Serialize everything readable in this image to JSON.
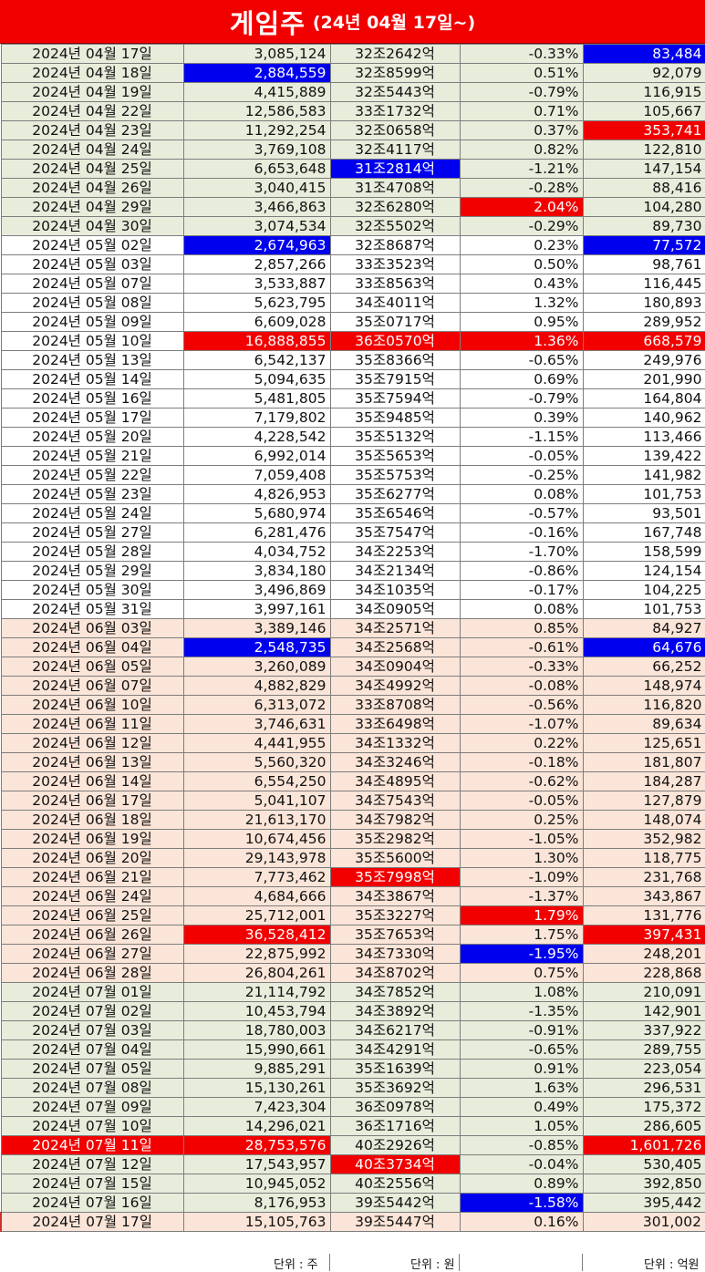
{
  "title": {
    "main": "게임주",
    "sub": "(24년 04월 17일~)"
  },
  "units": {
    "volume": "단위 : 주",
    "cap": "단위 : 원",
    "amount": "단위 : 억원"
  },
  "colors": {
    "red": "#f20000",
    "blue": "#0000ee",
    "bg_green": "#e8ecdb",
    "bg_pink": "#fbe5d8"
  },
  "rows": [
    {
      "date": "2024년 04월 17일",
      "vol": "3,085,124",
      "cap": "32조2642억",
      "chg": "-0.33%",
      "amt": "83,484",
      "bg": "g",
      "vs": "",
      "cs": "",
      "as": "blue-bg"
    },
    {
      "date": "2024년 04월 18일",
      "vol": "2,884,559",
      "cap": "32조8599억",
      "chg": "0.51%",
      "amt": "92,079",
      "bg": "g",
      "vs": "blue-bg",
      "cs": "",
      "as": ""
    },
    {
      "date": "2024년 04월 19일",
      "vol": "4,415,889",
      "cap": "32조5443억",
      "chg": "-0.79%",
      "amt": "116,915",
      "bg": "g",
      "vs": "",
      "cs": "",
      "as": ""
    },
    {
      "date": "2024년 04월 22일",
      "vol": "12,586,583",
      "cap": "33조1732억",
      "chg": "0.71%",
      "amt": "105,667",
      "bg": "g",
      "vs": "",
      "cs": "",
      "as": ""
    },
    {
      "date": "2024년 04월 23일",
      "vol": "11,292,254",
      "cap": "32조0658억",
      "chg": "0.37%",
      "amt": "353,741",
      "bg": "g",
      "vs": "",
      "cs": "",
      "as": "red-bg"
    },
    {
      "date": "2024년 04월 24일",
      "vol": "3,769,108",
      "cap": "32조4117억",
      "chg": "0.82%",
      "amt": "122,810",
      "bg": "g",
      "vs": "",
      "cs": "",
      "as": ""
    },
    {
      "date": "2024년 04월 25일",
      "vol": "6,653,648",
      "cap": "31조2814억",
      "chg": "-1.21%",
      "amt": "147,154",
      "bg": "g",
      "vs": "",
      "cs": "blue-bg",
      "as": ""
    },
    {
      "date": "2024년 04월 26일",
      "vol": "3,040,415",
      "cap": "31조4708억",
      "chg": "-0.28%",
      "amt": "88,416",
      "bg": "g",
      "vs": "",
      "cs": "",
      "as": "t-blue"
    },
    {
      "date": "2024년 04월 29일",
      "vol": "3,466,863",
      "cap": "32조6280억",
      "chg": "2.04%",
      "amt": "104,280",
      "bg": "g",
      "vs": "",
      "cs": "",
      "as": "",
      "xs": "red-bg"
    },
    {
      "date": "2024년 04월 30일",
      "vol": "3,074,534",
      "cap": "32조5502억",
      "chg": "-0.29%",
      "amt": "89,730",
      "bg": "g",
      "vs": "",
      "cs": "",
      "as": ""
    },
    {
      "date": "2024년 05월 02일",
      "vol": "2,674,963",
      "cap": "32조8687억",
      "chg": "0.23%",
      "amt": "77,572",
      "bg": "w",
      "vs": "blue-bg",
      "cs": "",
      "as": "blue-bg"
    },
    {
      "date": "2024년 05월 03일",
      "vol": "2,857,266",
      "cap": "33조3523억",
      "chg": "0.50%",
      "amt": "98,761",
      "bg": "w",
      "vs": "",
      "cs": "",
      "as": ""
    },
    {
      "date": "2024년 05월 07일",
      "vol": "3,533,887",
      "cap": "33조8563억",
      "chg": "0.43%",
      "amt": "116,445",
      "bg": "w",
      "vs": "",
      "cs": "",
      "as": ""
    },
    {
      "date": "2024년 05월 08일",
      "vol": "5,623,795",
      "cap": "34조4011억",
      "chg": "1.32%",
      "amt": "180,893",
      "bg": "w",
      "vs": "",
      "cs": "",
      "as": ""
    },
    {
      "date": "2024년 05월 09일",
      "vol": "6,609,028",
      "cap": "35조0717억",
      "chg": "0.95%",
      "amt": "289,952",
      "bg": "w",
      "vs": "t-red",
      "cs": "t-red",
      "as": "t-red"
    },
    {
      "date": "2024년 05월 10일",
      "vol": "16,888,855",
      "cap": "36조0570억",
      "chg": "1.36%",
      "amt": "668,579",
      "bg": "w",
      "vs": "red-bg",
      "cs": "red-bg",
      "as": "red-bg",
      "xs": "red-bg"
    },
    {
      "date": "2024년 05월 13일",
      "vol": "6,542,137",
      "cap": "35조8366억",
      "chg": "-0.65%",
      "amt": "249,976",
      "bg": "w",
      "vs": "",
      "cs": "",
      "as": ""
    },
    {
      "date": "2024년 05월 14일",
      "vol": "5,094,635",
      "cap": "35조7915억",
      "chg": "0.69%",
      "amt": "201,990",
      "bg": "w",
      "vs": "",
      "cs": "",
      "as": ""
    },
    {
      "date": "2024년 05월 16일",
      "vol": "5,481,805",
      "cap": "35조7594억",
      "chg": "-0.79%",
      "amt": "164,804",
      "bg": "w",
      "vs": "",
      "cs": "",
      "as": ""
    },
    {
      "date": "2024년 05월 17일",
      "vol": "7,179,802",
      "cap": "35조9485억",
      "chg": "0.39%",
      "amt": "140,962",
      "bg": "w",
      "vs": "",
      "cs": "",
      "as": ""
    },
    {
      "date": "2024년 05월 20일",
      "vol": "4,228,542",
      "cap": "35조5132억",
      "chg": "-1.15%",
      "amt": "113,466",
      "bg": "w",
      "vs": "",
      "cs": "",
      "as": ""
    },
    {
      "date": "2024년 05월 21일",
      "vol": "6,992,014",
      "cap": "35조5653억",
      "chg": "-0.05%",
      "amt": "139,422",
      "bg": "w",
      "vs": "",
      "cs": "",
      "as": ""
    },
    {
      "date": "2024년 05월 22일",
      "vol": "7,059,408",
      "cap": "35조5753억",
      "chg": "-0.25%",
      "amt": "141,982",
      "bg": "w",
      "vs": "",
      "cs": "",
      "as": ""
    },
    {
      "date": "2024년 05월 23일",
      "vol": "4,826,953",
      "cap": "35조6277억",
      "chg": "0.08%",
      "amt": "101,753",
      "bg": "w",
      "vs": "",
      "cs": "",
      "as": ""
    },
    {
      "date": "2024년 05월 24일",
      "vol": "5,680,974",
      "cap": "35조6546억",
      "chg": "-0.57%",
      "amt": "93,501",
      "bg": "w",
      "vs": "",
      "cs": "",
      "as": ""
    },
    {
      "date": "2024년 05월 27일",
      "vol": "6,281,476",
      "cap": "35조7547억",
      "chg": "-0.16%",
      "amt": "167,748",
      "bg": "w",
      "vs": "",
      "cs": "",
      "as": ""
    },
    {
      "date": "2024년 05월 28일",
      "vol": "4,034,752",
      "cap": "34조2253억",
      "chg": "-1.70%",
      "amt": "158,599",
      "bg": "w",
      "vs": "",
      "cs": "",
      "as": ""
    },
    {
      "date": "2024년 05월 29일",
      "vol": "3,834,180",
      "cap": "34조2134억",
      "chg": "-0.86%",
      "amt": "124,154",
      "bg": "w",
      "vs": "",
      "cs": "",
      "as": ""
    },
    {
      "date": "2024년 05월 30일",
      "vol": "3,496,869",
      "cap": "34조1035억",
      "chg": "-0.17%",
      "amt": "104,225",
      "bg": "w",
      "vs": "",
      "cs": "",
      "as": ""
    },
    {
      "date": "2024년 05월 31일",
      "vol": "3,997,161",
      "cap": "34조0905억",
      "chg": "0.08%",
      "amt": "101,753",
      "bg": "w",
      "vs": "",
      "cs": "",
      "as": ""
    },
    {
      "date": "2024년 06월 03일",
      "vol": "3,389,146",
      "cap": "34조2571억",
      "chg": "0.85%",
      "amt": "84,927",
      "bg": "p",
      "vs": "",
      "cs": "",
      "as": ""
    },
    {
      "date": "2024년 06월 04일",
      "vol": "2,548,735",
      "cap": "34조2568억",
      "chg": "-0.61%",
      "amt": "64,676",
      "bg": "p",
      "vs": "blue-bg",
      "cs": "",
      "as": "blue-bg"
    },
    {
      "date": "2024년 06월 05일",
      "vol": "3,260,089",
      "cap": "34조0904억",
      "chg": "-0.33%",
      "amt": "66,252",
      "bg": "p",
      "vs": "",
      "cs": "",
      "as": ""
    },
    {
      "date": "2024년 06월 07일",
      "vol": "4,882,829",
      "cap": "34조4992억",
      "chg": "-0.08%",
      "amt": "148,974",
      "bg": "p",
      "vs": "",
      "cs": "",
      "as": ""
    },
    {
      "date": "2024년 06월 10일",
      "vol": "6,313,072",
      "cap": "33조8708억",
      "chg": "-0.56%",
      "amt": "116,820",
      "bg": "p",
      "vs": "",
      "cs": "",
      "as": ""
    },
    {
      "date": "2024년 06월 11일",
      "vol": "3,746,631",
      "cap": "33조6498억",
      "chg": "-1.07%",
      "amt": "89,634",
      "bg": "p",
      "vs": "",
      "cs": "t-blue",
      "as": ""
    },
    {
      "date": "2024년 06월 12일",
      "vol": "4,441,955",
      "cap": "34조1332억",
      "chg": "0.22%",
      "amt": "125,651",
      "bg": "p",
      "vs": "",
      "cs": "",
      "as": ""
    },
    {
      "date": "2024년 06월 13일",
      "vol": "5,560,320",
      "cap": "34조3246억",
      "chg": "-0.18%",
      "amt": "181,807",
      "bg": "p",
      "vs": "",
      "cs": "",
      "as": ""
    },
    {
      "date": "2024년 06월 14일",
      "vol": "6,554,250",
      "cap": "34조4895억",
      "chg": "-0.62%",
      "amt": "184,287",
      "bg": "p",
      "vs": "",
      "cs": "",
      "as": ""
    },
    {
      "date": "2024년 06월 17일",
      "vol": "5,041,107",
      "cap": "34조7543억",
      "chg": "-0.05%",
      "amt": "127,879",
      "bg": "p",
      "vs": "",
      "cs": "",
      "as": ""
    },
    {
      "date": "2024년 06월 18일",
      "vol": "21,613,170",
      "cap": "34조7982억",
      "chg": "0.25%",
      "amt": "148,074",
      "bg": "p",
      "vs": "",
      "cs": "",
      "as": ""
    },
    {
      "date": "2024년 06월 19일",
      "vol": "10,674,456",
      "cap": "35조2982억",
      "chg": "-1.05%",
      "amt": "352,982",
      "bg": "p",
      "vs": "",
      "cs": "",
      "as": "t-red"
    },
    {
      "date": "2024년 06월 20일",
      "vol": "29,143,978",
      "cap": "35조5600억",
      "chg": "1.30%",
      "amt": "118,775",
      "bg": "p",
      "vs": "t-red",
      "cs": "t-red",
      "as": ""
    },
    {
      "date": "2024년 06월 21일",
      "vol": "7,773,462",
      "cap": "35조7998억",
      "chg": "-1.09%",
      "amt": "231,768",
      "bg": "p",
      "vs": "",
      "cs": "red-bg",
      "as": ""
    },
    {
      "date": "2024년 06월 24일",
      "vol": "4,684,666",
      "cap": "34조3867억",
      "chg": "-1.37%",
      "amt": "343,867",
      "bg": "p",
      "vs": "",
      "cs": "",
      "as": ""
    },
    {
      "date": "2024년 06월 25일",
      "vol": "25,712,001",
      "cap": "35조3227억",
      "chg": "1.79%",
      "amt": "131,776",
      "bg": "p",
      "vs": "",
      "cs": "",
      "as": "",
      "xs": "red-bg"
    },
    {
      "date": "2024년 06월 26일",
      "vol": "36,528,412",
      "cap": "35조7653억",
      "chg": "1.75%",
      "amt": "397,431",
      "bg": "p",
      "vs": "red-bg",
      "cs": "",
      "as": "red-bg"
    },
    {
      "date": "2024년 06월 27일",
      "vol": "22,875,992",
      "cap": "34조7330억",
      "chg": "-1.95%",
      "amt": "248,201",
      "bg": "p",
      "vs": "",
      "cs": "",
      "as": "",
      "xs": "blue-bg"
    },
    {
      "date": "2024년 06월 28일",
      "vol": "26,804,261",
      "cap": "34조8702억",
      "chg": "0.75%",
      "amt": "228,868",
      "bg": "p",
      "vs": "",
      "cs": "",
      "as": ""
    },
    {
      "date": "2024년 07월 01일",
      "vol": "21,114,792",
      "cap": "34조7852억",
      "chg": "1.08%",
      "amt": "210,091",
      "bg": "g",
      "vs": "",
      "cs": "",
      "as": ""
    },
    {
      "date": "2024년 07월 02일",
      "vol": "10,453,794",
      "cap": "34조3892억",
      "chg": "-1.35%",
      "amt": "142,901",
      "bg": "g",
      "vs": "",
      "cs": "",
      "as": ""
    },
    {
      "date": "2024년 07월 03일",
      "vol": "18,780,003",
      "cap": "34조6217억",
      "chg": "-0.91%",
      "amt": "337,922",
      "bg": "g",
      "vs": "",
      "cs": "",
      "as": ""
    },
    {
      "date": "2024년 07월 04일",
      "vol": "15,990,661",
      "cap": "34조4291억",
      "chg": "-0.65%",
      "amt": "289,755",
      "bg": "g",
      "vs": "",
      "cs": "",
      "as": ""
    },
    {
      "date": "2024년 07월 05일",
      "vol": "9,885,291",
      "cap": "35조1639억",
      "chg": "0.91%",
      "amt": "223,054",
      "bg": "g",
      "vs": "",
      "cs": "",
      "as": ""
    },
    {
      "date": "2024년 07월 08일",
      "vol": "15,130,261",
      "cap": "35조3692억",
      "chg": "1.63%",
      "amt": "296,531",
      "bg": "g",
      "vs": "",
      "cs": "",
      "as": ""
    },
    {
      "date": "2024년 07월 09일",
      "vol": "7,423,304",
      "cap": "36조0978억",
      "chg": "0.49%",
      "amt": "175,372",
      "bg": "g",
      "vs": "t-blue",
      "cs": "",
      "as": "t-blue"
    },
    {
      "date": "2024년 07월 10일",
      "vol": "14,296,021",
      "cap": "36조1716억",
      "chg": "1.05%",
      "amt": "286,605",
      "bg": "g",
      "vs": "",
      "cs": "",
      "as": ""
    },
    {
      "date": "2024년 07월 11일",
      "vol": "28,753,576",
      "cap": "40조2926억",
      "chg": "-0.85%",
      "amt": "1,601,726",
      "bg": "g",
      "vs": "red-bg",
      "cs": "t-red",
      "as": "red-bg",
      "ds": "red-bg"
    },
    {
      "date": "2024년 07월 12일",
      "vol": "17,543,957",
      "cap": "40조3734억",
      "chg": "-0.04%",
      "amt": "530,405",
      "bg": "g",
      "vs": "",
      "cs": "red-bg",
      "as": ""
    },
    {
      "date": "2024년 07월 15일",
      "vol": "10,945,052",
      "cap": "40조2556억",
      "chg": "0.89%",
      "amt": "392,850",
      "bg": "g",
      "vs": "",
      "cs": "",
      "as": ""
    },
    {
      "date": "2024년 07월 16일",
      "vol": "8,176,953",
      "cap": "39조5442억",
      "chg": "-1.58%",
      "amt": "395,442",
      "bg": "g",
      "vs": "",
      "cs": "",
      "as": "",
      "xs": "blue-bg"
    },
    {
      "date": "2024년 07월 17일",
      "vol": "15,105,763",
      "cap": "39조5447억",
      "chg": "0.16%",
      "amt": "301,002",
      "bg": "p",
      "vs": "",
      "cs": "",
      "as": "",
      "outline": true
    }
  ]
}
